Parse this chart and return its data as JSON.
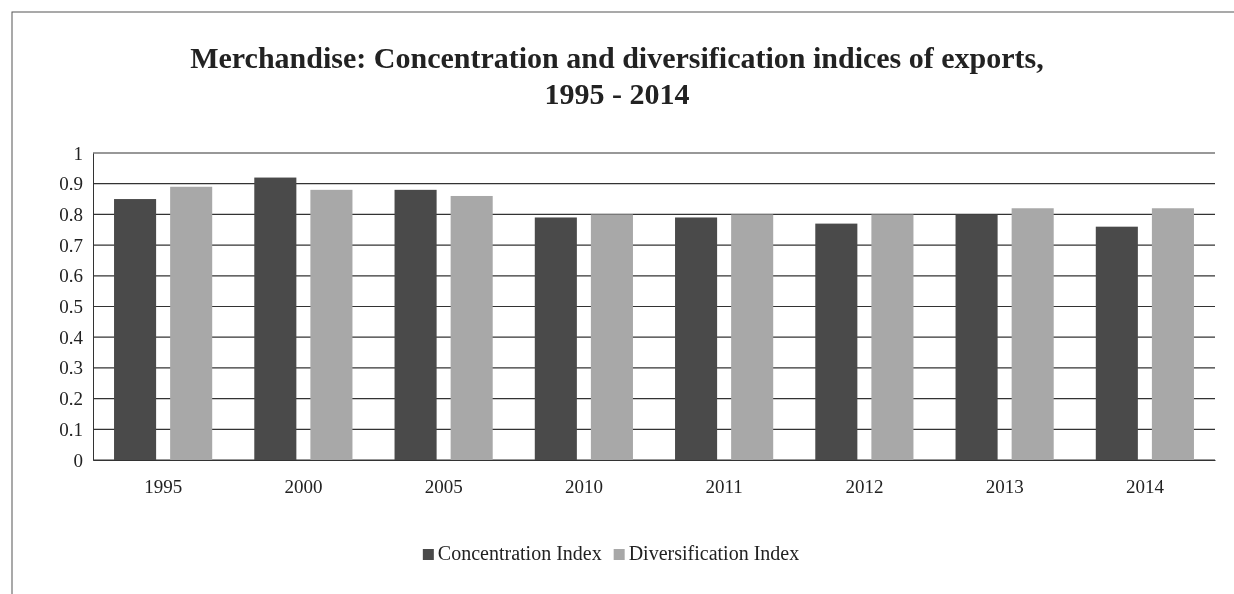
{
  "chart_data": {
    "type": "bar",
    "title": "Merchandise: Concentration and diversification indices of exports, 1995 - 2014",
    "categories": [
      "1995",
      "2000",
      "2005",
      "2010",
      "2011",
      "2012",
      "2013",
      "2014"
    ],
    "series": [
      {
        "name": "Concentration Index",
        "color": "#4a4a4a",
        "values": [
          0.85,
          0.92,
          0.88,
          0.79,
          0.79,
          0.77,
          0.8,
          0.76
        ]
      },
      {
        "name": "Diversification Index",
        "color": "#a8a8a8",
        "values": [
          0.89,
          0.88,
          0.86,
          0.8,
          0.8,
          0.8,
          0.82,
          0.82
        ]
      }
    ],
    "ylim": [
      0,
      1
    ],
    "yticks": [
      0,
      {
        "value": 0.1,
        "label": "0.1"
      },
      {
        "value": 0.2,
        "label": "0.2"
      },
      {
        "value": 0.3,
        "label": "0.3"
      },
      {
        "value": 0.4,
        "label": "0.4"
      },
      {
        "value": 0.5,
        "label": "0.5"
      },
      {
        "value": 0.6,
        "label": "0.6"
      },
      {
        "value": 0.7,
        "label": "0.7"
      },
      {
        "value": 0.8,
        "label": "0.8"
      },
      {
        "value": 0.9,
        "label": "0.9"
      },
      1
    ],
    "grid": "y",
    "legend": "bottom"
  }
}
